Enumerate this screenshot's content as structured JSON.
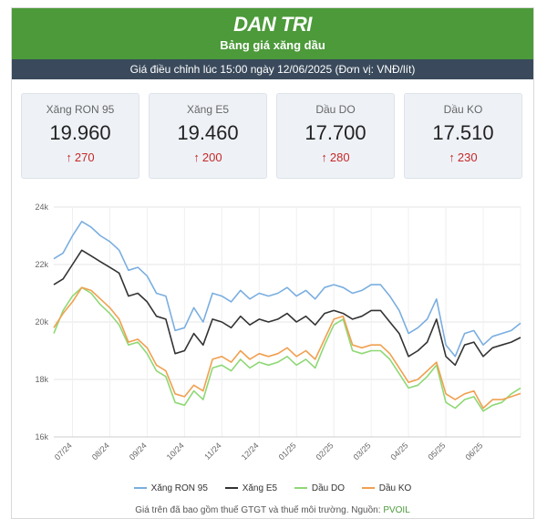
{
  "header": {
    "brand": "DAN TRI",
    "title": "Bảng giá xăng dầu"
  },
  "info": {
    "text": "Giá điều chỉnh lúc 15:00 ngày 12/06/2025 (Đơn vị: VNĐ/lít)"
  },
  "cards": [
    {
      "name": "Xăng RON 95",
      "price": "19.960",
      "change": "270"
    },
    {
      "name": "Xăng E5",
      "price": "19.460",
      "change": "200"
    },
    {
      "name": "Dầu DO",
      "price": "17.700",
      "change": "280"
    },
    {
      "name": "Dầu KO",
      "price": "17.510",
      "change": "230"
    }
  ],
  "footnote": {
    "text": "Giá trên đã bao gồm thuế GTGT và thuế môi trường. Nguồn: ",
    "source": "PVOIL"
  },
  "colors": {
    "accent": "#4c9a3a",
    "infobar": "#3a4a5c",
    "up": "#c62828"
  },
  "chart_data": {
    "type": "line",
    "ylim": [
      16000,
      24000
    ],
    "yticks": [
      16000,
      18000,
      20000,
      22000,
      24000
    ],
    "ytick_labels": [
      "16k",
      "18k",
      "20k",
      "22k",
      "24k"
    ],
    "x": [
      0,
      1,
      2,
      3,
      4,
      5,
      6,
      7,
      8,
      9,
      10,
      11,
      12,
      13,
      14,
      15,
      16,
      17,
      18,
      19,
      20,
      21,
      22,
      23,
      24,
      25,
      26,
      27,
      28,
      29,
      30,
      31,
      32,
      33,
      34,
      35,
      36,
      37,
      38,
      39,
      40,
      41,
      42,
      43,
      44,
      45,
      46,
      47,
      48,
      49,
      50
    ],
    "xtick_positions": [
      2,
      6,
      10,
      14,
      18,
      22,
      26,
      30,
      34,
      38,
      42,
      46,
      50
    ],
    "xtick_labels": [
      "07/24",
      "08/24",
      "09/24",
      "10/24",
      "11/24",
      "12/24",
      "01/25",
      "02/25",
      "03/25",
      "04/25",
      "05/25",
      "06/25",
      ""
    ],
    "legend": "bottom",
    "grid": true,
    "series": [
      {
        "name": "Xăng RON 95",
        "color": "#7aaee0",
        "values": [
          22200,
          22400,
          23000,
          23500,
          23300,
          23000,
          22800,
          22500,
          21800,
          21900,
          21600,
          21000,
          20900,
          19700,
          19800,
          20500,
          20000,
          21000,
          20900,
          20700,
          21100,
          20800,
          21000,
          20900,
          21000,
          21200,
          20900,
          21100,
          20800,
          21200,
          21300,
          21200,
          21000,
          21100,
          21300,
          21300,
          20900,
          20400,
          19600,
          19800,
          20100,
          20800,
          19200,
          18800,
          19600,
          19700,
          19200,
          19500,
          19600,
          19700,
          19960
        ]
      },
      {
        "name": "Xăng E5",
        "color": "#333333",
        "values": [
          21300,
          21500,
          22000,
          22500,
          22300,
          22100,
          21900,
          21700,
          20900,
          21000,
          20700,
          20200,
          20100,
          18900,
          19000,
          19600,
          19200,
          20100,
          20000,
          19800,
          20200,
          19900,
          20100,
          20000,
          20100,
          20300,
          20000,
          20200,
          19900,
          20300,
          20400,
          20300,
          20100,
          20200,
          20400,
          20400,
          20000,
          19600,
          18800,
          19000,
          19300,
          20100,
          18800,
          18500,
          19200,
          19300,
          18800,
          19100,
          19200,
          19300,
          19460
        ]
      },
      {
        "name": "Dầu DO",
        "color": "#8fd876",
        "values": [
          19600,
          20400,
          20900,
          21200,
          21000,
          20600,
          20300,
          19900,
          19200,
          19300,
          18900,
          18300,
          18100,
          17200,
          17100,
          17600,
          17300,
          18400,
          18500,
          18300,
          18700,
          18400,
          18600,
          18500,
          18600,
          18800,
          18500,
          18700,
          18400,
          19200,
          19900,
          20100,
          19000,
          18900,
          19000,
          19000,
          18700,
          18200,
          17700,
          17800,
          18100,
          18500,
          17200,
          17000,
          17300,
          17400,
          16900,
          17100,
          17200,
          17500,
          17700
        ]
      },
      {
        "name": "Dầu KO",
        "color": "#f0a050",
        "values": [
          19800,
          20300,
          20700,
          21200,
          21100,
          20800,
          20500,
          20100,
          19300,
          19400,
          19100,
          18500,
          18300,
          17500,
          17400,
          17800,
          17600,
          18700,
          18800,
          18600,
          19000,
          18700,
          18900,
          18800,
          18900,
          19100,
          18800,
          19000,
          18700,
          19400,
          20100,
          20200,
          19200,
          19100,
          19200,
          19200,
          18900,
          18400,
          17900,
          18000,
          18300,
          18600,
          17500,
          17300,
          17500,
          17600,
          17000,
          17300,
          17300,
          17400,
          17510
        ]
      }
    ]
  }
}
